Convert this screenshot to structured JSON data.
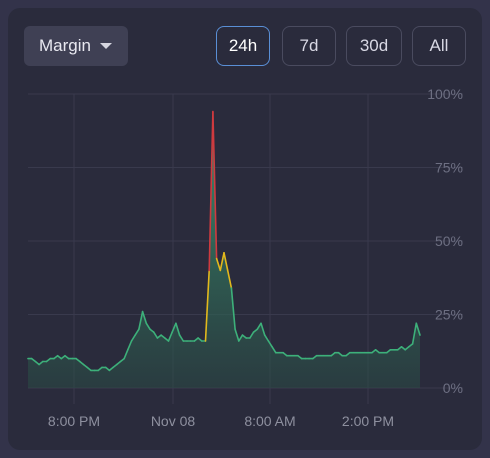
{
  "controls": {
    "metric_dropdown": {
      "label": "Margin"
    },
    "range_buttons": [
      {
        "label": "24h",
        "active": true
      },
      {
        "label": "7d",
        "active": false
      },
      {
        "label": "30d",
        "active": false
      },
      {
        "label": "All",
        "active": false
      }
    ]
  },
  "chart_data": {
    "type": "area",
    "title": "",
    "xlabel": "",
    "ylabel": "",
    "ylim": [
      0,
      100
    ],
    "y_ticks": [
      "100%",
      "75%",
      "50%",
      "25%",
      "0%"
    ],
    "x_ticks": [
      "8:00 PM",
      "Nov 08",
      "8:00 AM",
      "2:00 PM"
    ],
    "grid": true,
    "series": [
      {
        "values": [
          10,
          10,
          9,
          8,
          9,
          9,
          10,
          10,
          11,
          10,
          11,
          10,
          10,
          10,
          9,
          8,
          7,
          6,
          6,
          6,
          7,
          7,
          6,
          7,
          8,
          9,
          10,
          13,
          16,
          18,
          20,
          26,
          22,
          20,
          19,
          17,
          18,
          17,
          16,
          19,
          22,
          18,
          16,
          16,
          16,
          16,
          17,
          16,
          16,
          40,
          94,
          44,
          40,
          46,
          40,
          34,
          20,
          16,
          18,
          17,
          17,
          19,
          20,
          22,
          18,
          16,
          14,
          12,
          12,
          12,
          11,
          11,
          11,
          11,
          10,
          10,
          10,
          10,
          11,
          11,
          11,
          11,
          11,
          12,
          12,
          11,
          11,
          12,
          12,
          12,
          12,
          12,
          12,
          12,
          13,
          12,
          12,
          12,
          13,
          13,
          13,
          14,
          13,
          14,
          15,
          22,
          18
        ]
      }
    ],
    "colors": {
      "low": "#3db07a",
      "mid": "#e3b81c",
      "high": "#cf3a3f",
      "grid": "#393a4d"
    }
  }
}
